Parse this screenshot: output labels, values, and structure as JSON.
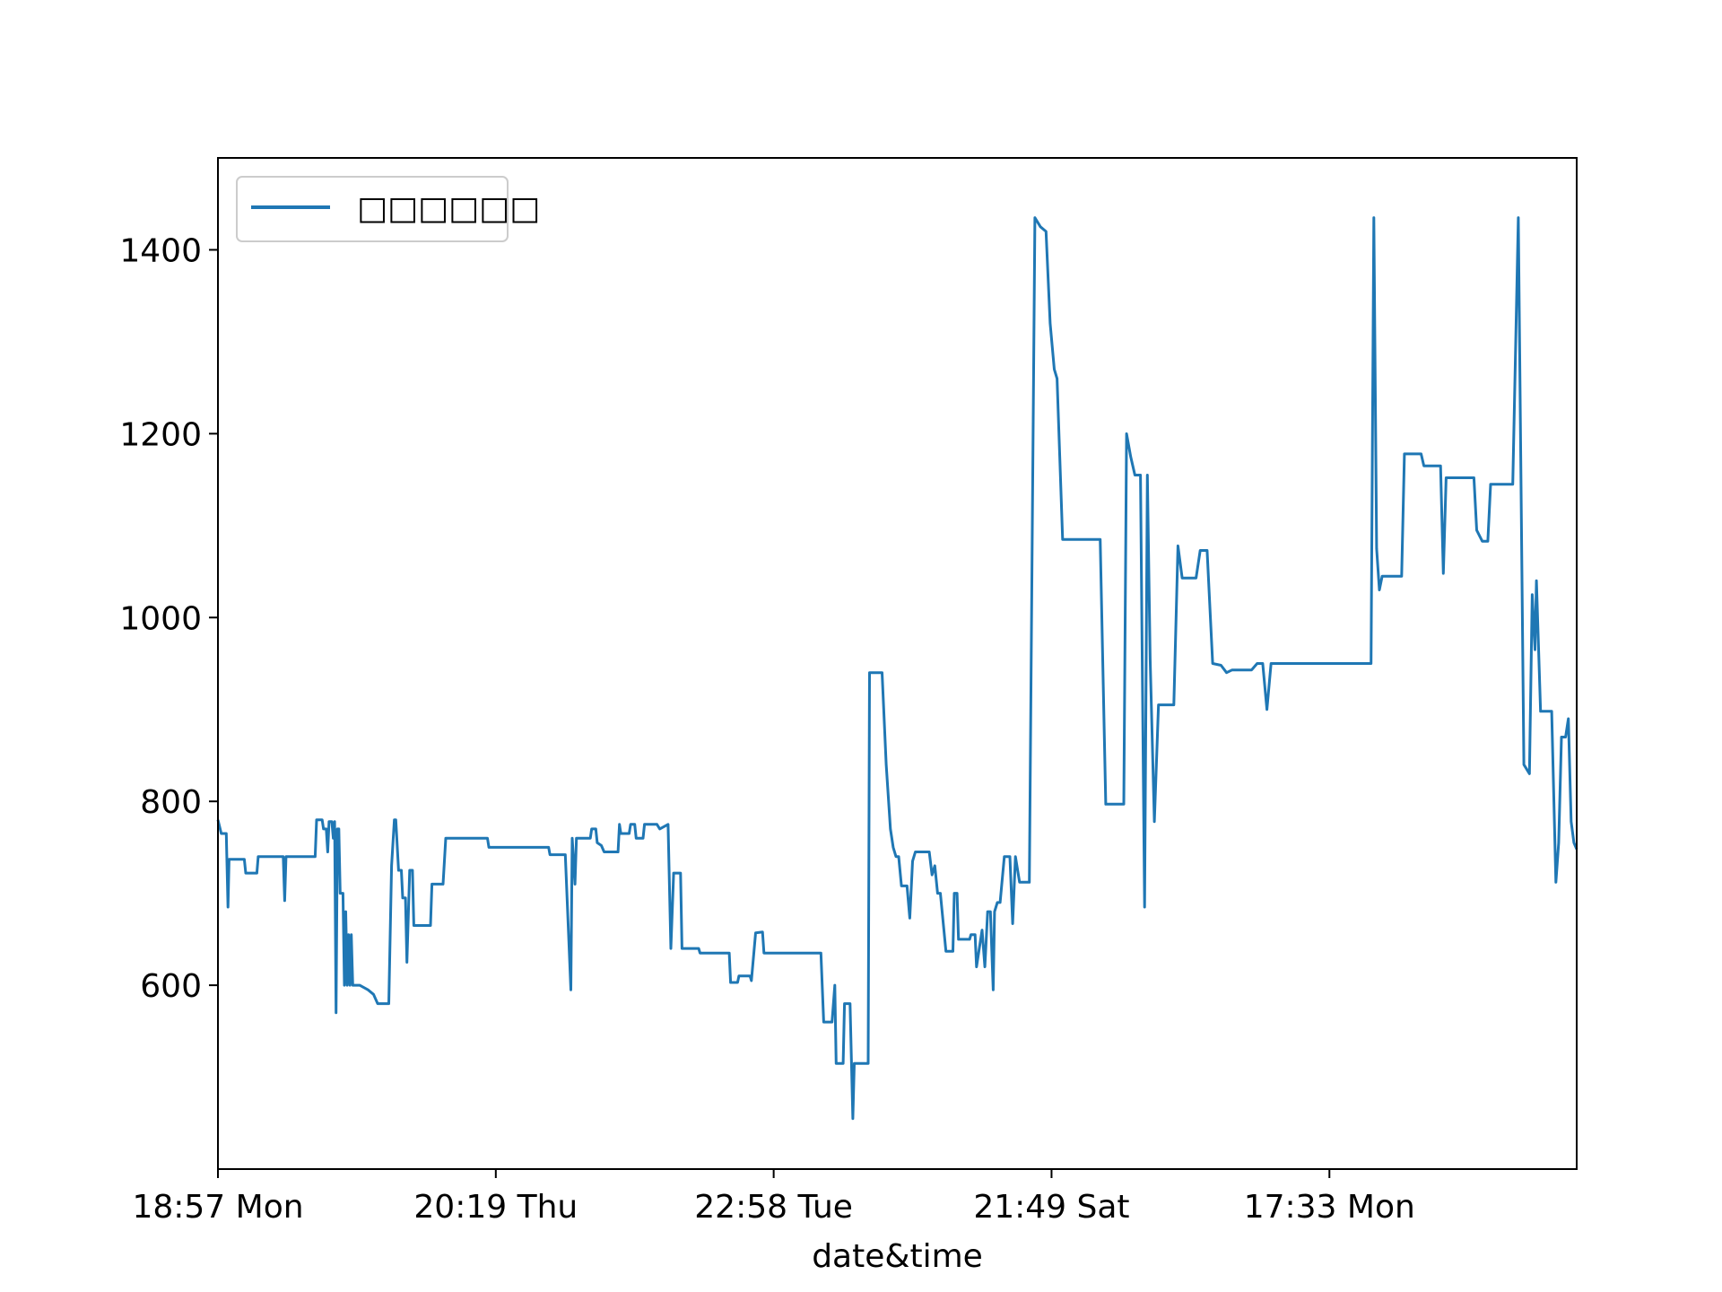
{
  "chart_data": {
    "type": "line",
    "title": "",
    "xlabel": "date&time",
    "ylabel": "",
    "x_tick_labels": [
      "18:57 Mon",
      "20:19 Thu",
      "22:58 Tue",
      "21:49 Sat",
      "17:33 Mon"
    ],
    "y_ticks": [
      600,
      800,
      1000,
      1200,
      1400
    ],
    "ylim": [
      400,
      1500
    ],
    "xlim": [
      0,
      4.89
    ],
    "grid": false,
    "legend_position": "top-left",
    "series": [
      {
        "name": "□□□□□□",
        "color": "#1f77b4",
        "points": [
          [
            0.0,
            780
          ],
          [
            0.012,
            765
          ],
          [
            0.03,
            765
          ],
          [
            0.036,
            685
          ],
          [
            0.04,
            737
          ],
          [
            0.095,
            737
          ],
          [
            0.1,
            722
          ],
          [
            0.14,
            722
          ],
          [
            0.145,
            740
          ],
          [
            0.235,
            740
          ],
          [
            0.24,
            692
          ],
          [
            0.245,
            740
          ],
          [
            0.35,
            740
          ],
          [
            0.355,
            780
          ],
          [
            0.375,
            780
          ],
          [
            0.38,
            770
          ],
          [
            0.39,
            770
          ],
          [
            0.395,
            745
          ],
          [
            0.4,
            778
          ],
          [
            0.41,
            778
          ],
          [
            0.415,
            760
          ],
          [
            0.42,
            778
          ],
          [
            0.425,
            570
          ],
          [
            0.43,
            770
          ],
          [
            0.435,
            770
          ],
          [
            0.44,
            700
          ],
          [
            0.45,
            700
          ],
          [
            0.455,
            600
          ],
          [
            0.46,
            680
          ],
          [
            0.465,
            600
          ],
          [
            0.47,
            655
          ],
          [
            0.475,
            600
          ],
          [
            0.48,
            655
          ],
          [
            0.485,
            600
          ],
          [
            0.5,
            600
          ],
          [
            0.51,
            600
          ],
          [
            0.54,
            595
          ],
          [
            0.56,
            590
          ],
          [
            0.575,
            580
          ],
          [
            0.615,
            580
          ],
          [
            0.625,
            730
          ],
          [
            0.635,
            780
          ],
          [
            0.64,
            780
          ],
          [
            0.65,
            725
          ],
          [
            0.66,
            725
          ],
          [
            0.665,
            695
          ],
          [
            0.675,
            695
          ],
          [
            0.68,
            625
          ],
          [
            0.69,
            725
          ],
          [
            0.7,
            725
          ],
          [
            0.705,
            665
          ],
          [
            0.765,
            665
          ],
          [
            0.77,
            710
          ],
          [
            0.81,
            710
          ],
          [
            0.82,
            760
          ],
          [
            0.97,
            760
          ],
          [
            0.975,
            750
          ],
          [
            1.19,
            750
          ],
          [
            1.195,
            742
          ],
          [
            1.25,
            742
          ],
          [
            1.27,
            595
          ],
          [
            1.275,
            760
          ],
          [
            1.285,
            710
          ],
          [
            1.29,
            760
          ],
          [
            1.34,
            760
          ],
          [
            1.345,
            770
          ],
          [
            1.36,
            770
          ],
          [
            1.365,
            755
          ],
          [
            1.38,
            752
          ],
          [
            1.39,
            745
          ],
          [
            1.44,
            745
          ],
          [
            1.445,
            775
          ],
          [
            1.45,
            765
          ],
          [
            1.48,
            765
          ],
          [
            1.485,
            775
          ],
          [
            1.5,
            775
          ],
          [
            1.505,
            760
          ],
          [
            1.53,
            760
          ],
          [
            1.535,
            775
          ],
          [
            1.58,
            775
          ],
          [
            1.59,
            770
          ],
          [
            1.62,
            775
          ],
          [
            1.63,
            640
          ],
          [
            1.64,
            722
          ],
          [
            1.665,
            722
          ],
          [
            1.67,
            640
          ],
          [
            1.73,
            640
          ],
          [
            1.735,
            635
          ],
          [
            1.84,
            635
          ],
          [
            1.845,
            603
          ],
          [
            1.87,
            603
          ],
          [
            1.875,
            610
          ],
          [
            1.915,
            610
          ],
          [
            1.92,
            605
          ],
          [
            1.935,
            657
          ],
          [
            1.96,
            658
          ],
          [
            1.965,
            635
          ],
          [
            2.17,
            635
          ],
          [
            2.18,
            560
          ],
          [
            2.21,
            560
          ],
          [
            2.22,
            600
          ],
          [
            2.225,
            515
          ],
          [
            2.25,
            515
          ],
          [
            2.255,
            580
          ],
          [
            2.275,
            580
          ],
          [
            2.285,
            455
          ],
          [
            2.29,
            515
          ],
          [
            2.34,
            515
          ],
          [
            2.345,
            940
          ],
          [
            2.39,
            940
          ],
          [
            2.405,
            840
          ],
          [
            2.42,
            770
          ],
          [
            2.43,
            750
          ],
          [
            2.44,
            740
          ],
          [
            2.45,
            740
          ],
          [
            2.46,
            708
          ],
          [
            2.475,
            708
          ],
          [
            2.48,
            708
          ],
          [
            2.49,
            673
          ],
          [
            2.5,
            735
          ],
          [
            2.51,
            745
          ],
          [
            2.56,
            745
          ],
          [
            2.57,
            720
          ],
          [
            2.58,
            730
          ],
          [
            2.59,
            700
          ],
          [
            2.6,
            700
          ],
          [
            2.62,
            637
          ],
          [
            2.645,
            637
          ],
          [
            2.65,
            700
          ],
          [
            2.66,
            700
          ],
          [
            2.665,
            650
          ],
          [
            2.705,
            650
          ],
          [
            2.71,
            655
          ],
          [
            2.725,
            655
          ],
          [
            2.73,
            620
          ],
          [
            2.75,
            660
          ],
          [
            2.76,
            620
          ],
          [
            2.77,
            680
          ],
          [
            2.78,
            680
          ],
          [
            2.79,
            595
          ],
          [
            2.795,
            680
          ],
          [
            2.805,
            690
          ],
          [
            2.815,
            690
          ],
          [
            2.83,
            740
          ],
          [
            2.85,
            740
          ],
          [
            2.86,
            667
          ],
          [
            2.87,
            740
          ],
          [
            2.885,
            712
          ],
          [
            2.92,
            712
          ],
          [
            2.94,
            1435
          ],
          [
            2.96,
            1425
          ],
          [
            2.98,
            1420
          ],
          [
            2.995,
            1320
          ],
          [
            3.01,
            1270
          ],
          [
            3.02,
            1260
          ],
          [
            3.04,
            1085
          ],
          [
            3.175,
            1085
          ],
          [
            3.195,
            797
          ],
          [
            3.26,
            797
          ],
          [
            3.27,
            1200
          ],
          [
            3.285,
            1175
          ],
          [
            3.3,
            1155
          ],
          [
            3.32,
            1155
          ],
          [
            3.335,
            685
          ],
          [
            3.345,
            1155
          ],
          [
            3.355,
            955
          ],
          [
            3.37,
            778
          ],
          [
            3.385,
            905
          ],
          [
            3.44,
            905
          ],
          [
            3.455,
            1078
          ],
          [
            3.47,
            1043
          ],
          [
            3.52,
            1043
          ],
          [
            3.535,
            1073
          ],
          [
            3.56,
            1073
          ],
          [
            3.58,
            950
          ],
          [
            3.61,
            948
          ],
          [
            3.63,
            940
          ],
          [
            3.65,
            943
          ],
          [
            3.69,
            943
          ],
          [
            3.72,
            943
          ],
          [
            3.74,
            950
          ],
          [
            3.76,
            950
          ],
          [
            3.775,
            900
          ],
          [
            3.79,
            950
          ],
          [
            3.8,
            950
          ],
          [
            3.82,
            950
          ],
          [
            3.86,
            950
          ],
          [
            4.15,
            950
          ],
          [
            4.16,
            1435
          ],
          [
            4.17,
            1075
          ],
          [
            4.18,
            1030
          ],
          [
            4.19,
            1045
          ],
          [
            4.26,
            1045
          ],
          [
            4.27,
            1178
          ],
          [
            4.33,
            1178
          ],
          [
            4.34,
            1165
          ],
          [
            4.4,
            1165
          ],
          [
            4.41,
            1048
          ],
          [
            4.42,
            1152
          ],
          [
            4.52,
            1152
          ],
          [
            4.53,
            1095
          ],
          [
            4.55,
            1083
          ],
          [
            4.57,
            1083
          ],
          [
            4.58,
            1145
          ],
          [
            4.64,
            1145
          ],
          [
            4.66,
            1145
          ],
          [
            4.68,
            1435
          ],
          [
            4.7,
            840
          ],
          [
            4.72,
            830
          ],
          [
            4.73,
            1025
          ],
          [
            4.74,
            965
          ],
          [
            4.745,
            1040
          ],
          [
            4.76,
            898
          ],
          [
            4.8,
            898
          ],
          [
            4.815,
            712
          ],
          [
            4.825,
            755
          ],
          [
            4.835,
            870
          ],
          [
            4.85,
            870
          ],
          [
            4.86,
            890
          ],
          [
            4.87,
            778
          ],
          [
            4.88,
            755
          ],
          [
            4.89,
            748
          ]
        ]
      }
    ]
  }
}
